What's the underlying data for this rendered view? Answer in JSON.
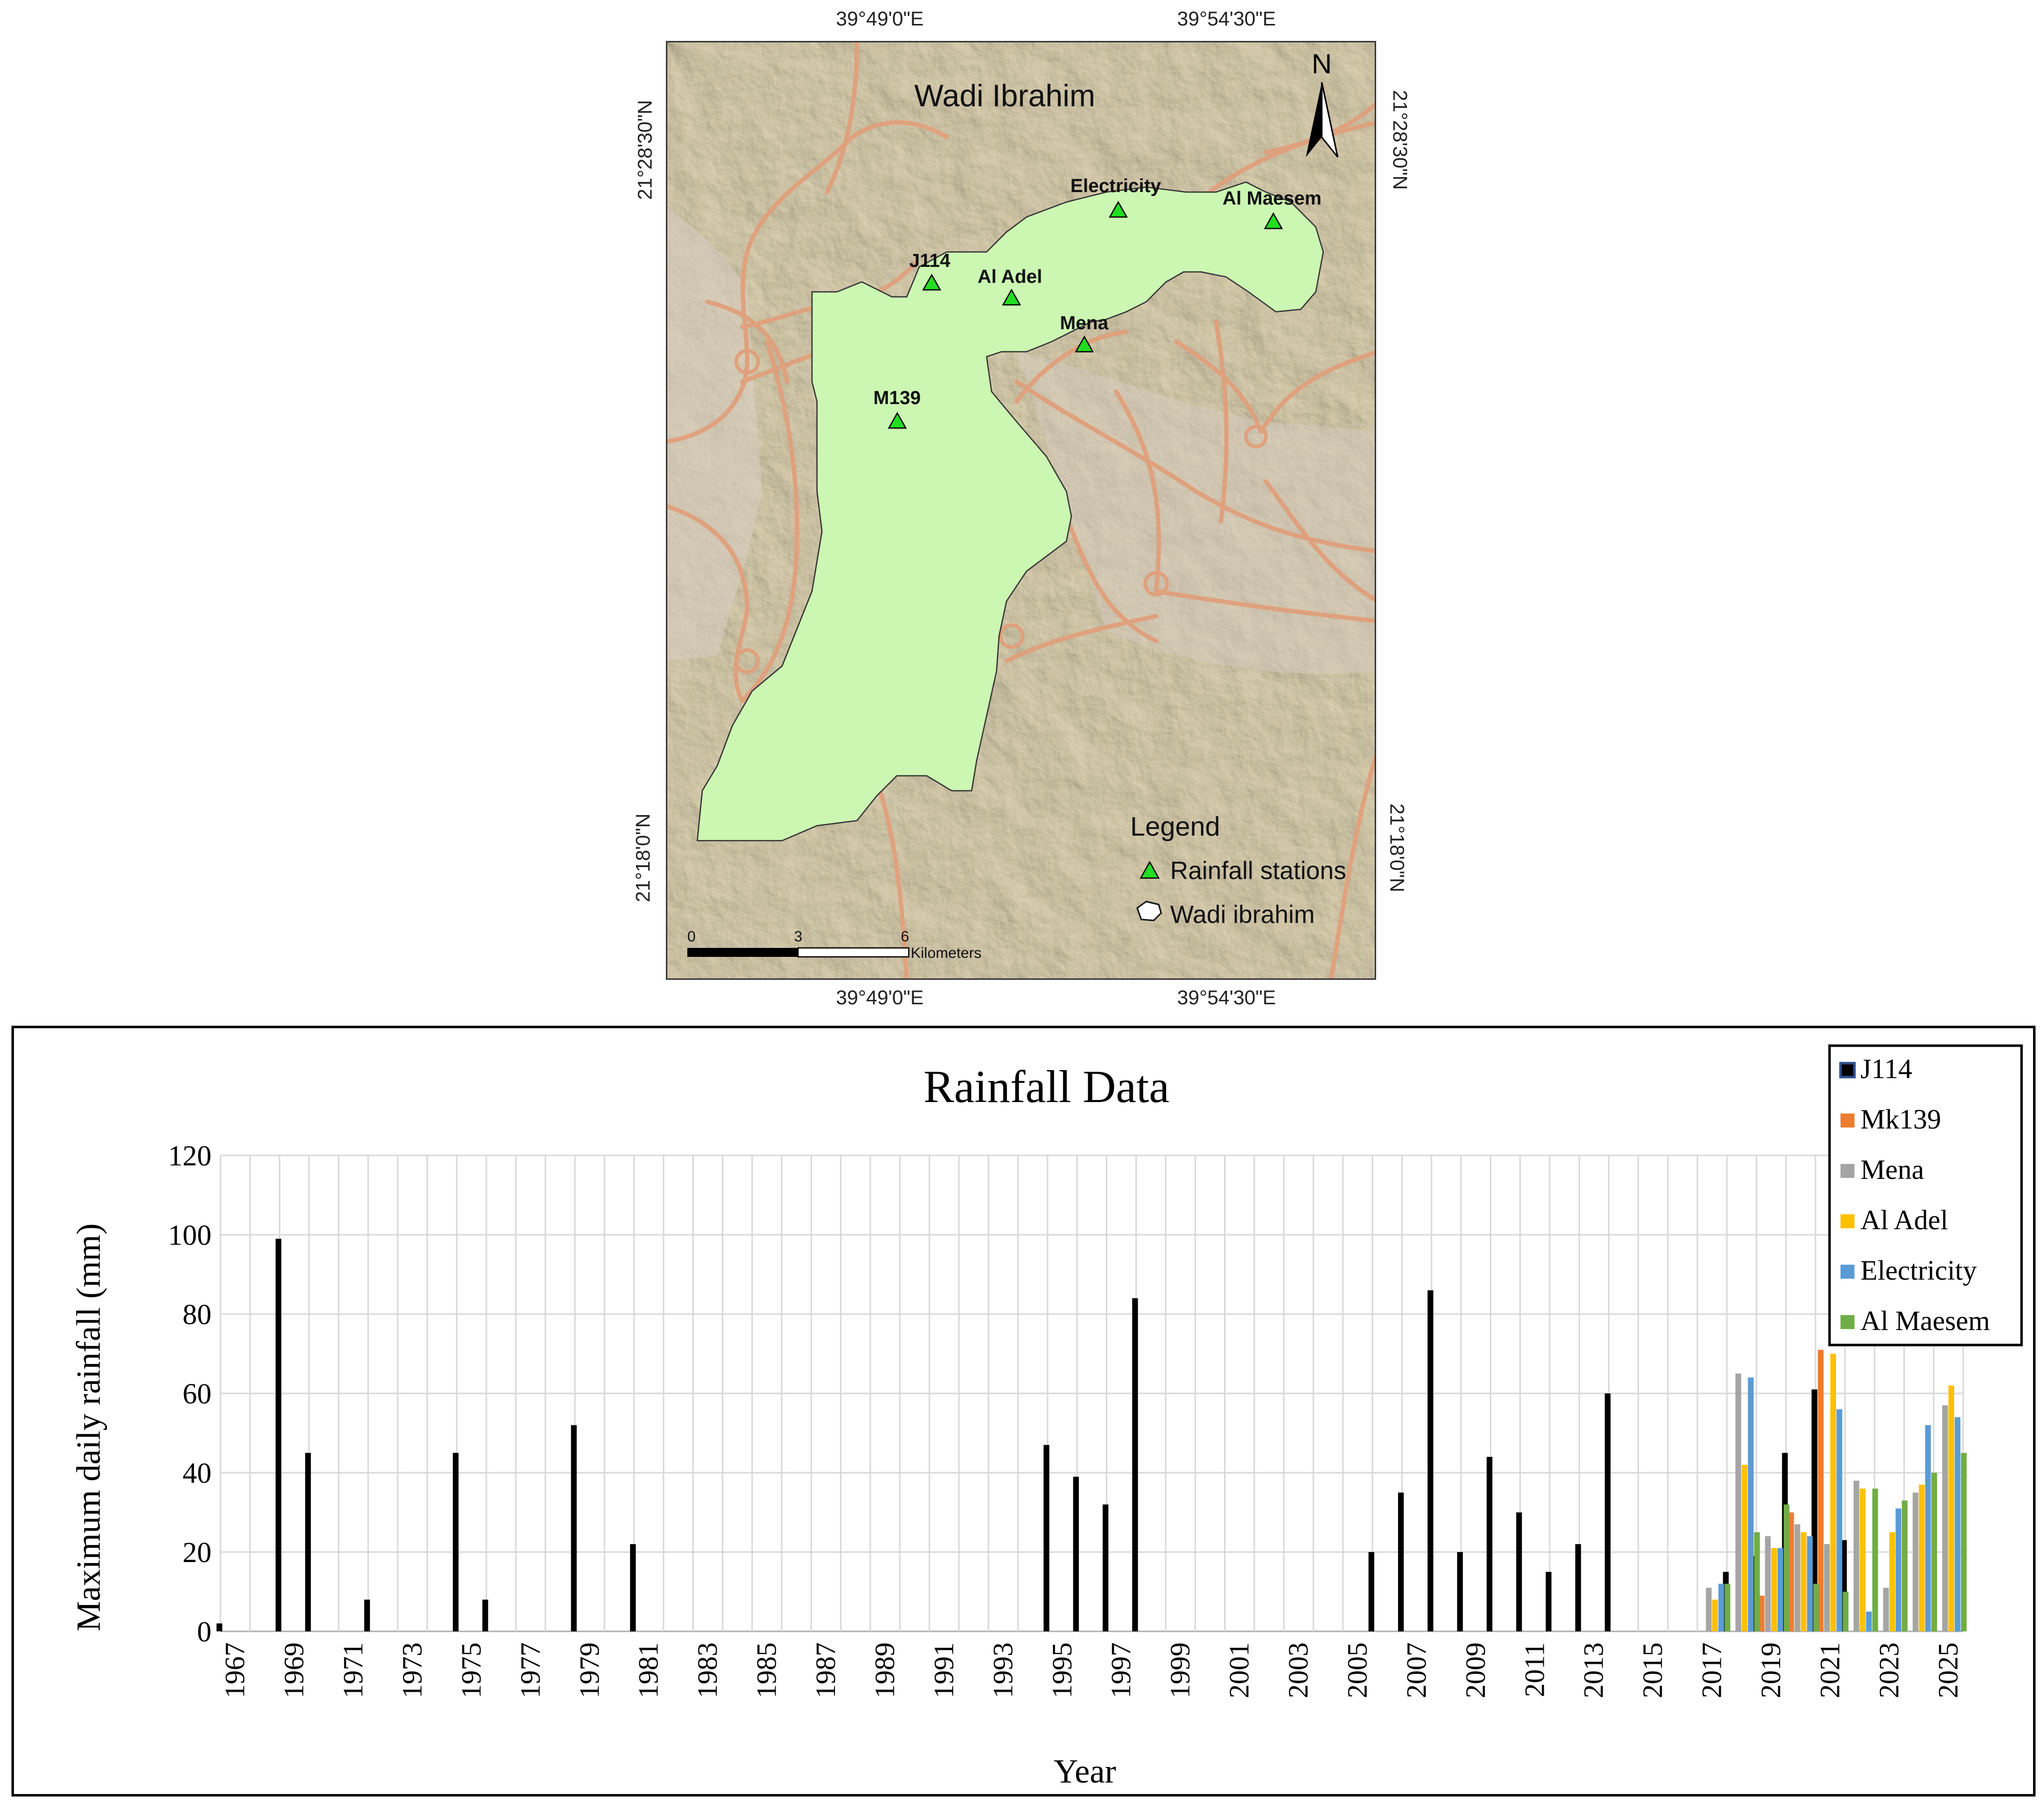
{
  "map": {
    "title": "Wadi Ibrahim",
    "north_label": "N",
    "top_lon_labels": [
      "39°49'0\"E",
      "39°54'30\"E"
    ],
    "bottom_lon_labels": [
      "39°49'0\"E",
      "39°54'30\"E"
    ],
    "left_lat_labels": [
      "21°28'30\"N",
      "21°18'0\"N"
    ],
    "right_lat_labels": [
      "21°28'30\"N",
      "21°18'0\"N"
    ],
    "stations": [
      {
        "name": "J114"
      },
      {
        "name": "Al Adel"
      },
      {
        "name": "Electricity"
      },
      {
        "name": "Al Maesem"
      },
      {
        "name": "Mena"
      },
      {
        "name": "M139"
      }
    ],
    "legend": {
      "title": "Legend",
      "items": [
        {
          "label": "Rainfall stations",
          "icon": "green-triangle-icon"
        },
        {
          "label": "Wadi ibrahim",
          "icon": "polygon-outline-icon"
        }
      ]
    },
    "scale_bar": {
      "ticks": [
        "0",
        "3",
        "6"
      ],
      "unit": "Kilometers"
    },
    "colors": {
      "basin": "#ccf7b3",
      "background": "#d9ccaa",
      "roads": "#e3a07a",
      "station": "#22dd22"
    }
  },
  "chart_data": {
    "type": "bar",
    "title": "Rainfall Data",
    "xlabel": "Year",
    "ylabel": "Maximum daily rainfall (mm)",
    "ylim": [
      0,
      120
    ],
    "yticks": [
      0,
      20,
      40,
      60,
      80,
      100,
      120
    ],
    "grid": true,
    "legend_position": "top-right",
    "categories": [
      1967,
      1968,
      1969,
      1970,
      1971,
      1972,
      1973,
      1974,
      1975,
      1976,
      1977,
      1978,
      1979,
      1980,
      1981,
      1982,
      1983,
      1984,
      1985,
      1986,
      1987,
      1988,
      1989,
      1990,
      1991,
      1992,
      1993,
      1994,
      1995,
      1996,
      1997,
      1998,
      1999,
      2000,
      2001,
      2002,
      2003,
      2004,
      2005,
      2006,
      2007,
      2008,
      2009,
      2010,
      2011,
      2012,
      2013,
      2014,
      2015,
      2016,
      2017,
      2018,
      2019,
      2020,
      2021,
      2022,
      2023,
      2024,
      2025
    ],
    "tick_labels": [
      "1967",
      "1969",
      "1971",
      "1973",
      "1975",
      "1977",
      "1979",
      "1981",
      "1983",
      "1985",
      "1987",
      "1989",
      "1991",
      "1993",
      "1995",
      "1997",
      "1999",
      "2001",
      "2003",
      "2005",
      "2007",
      "2009",
      "2011",
      "2013",
      "2015",
      "2017",
      "2019",
      "2021",
      "2023",
      "2025"
    ],
    "series": [
      {
        "name": "J114",
        "color": "#000000",
        "values": [
          2,
          null,
          99,
          45,
          null,
          8,
          null,
          null,
          45,
          8,
          null,
          null,
          52,
          null,
          22,
          null,
          null,
          null,
          null,
          null,
          null,
          null,
          null,
          null,
          null,
          null,
          null,
          null,
          47,
          39,
          32,
          84,
          null,
          null,
          null,
          null,
          null,
          null,
          null,
          20,
          35,
          86,
          20,
          44,
          30,
          15,
          22,
          60,
          null,
          null,
          null,
          15,
          19,
          45,
          61,
          23,
          null,
          null,
          null
        ]
      },
      {
        "name": "Mk139",
        "color": "#ed7d31",
        "values": [
          null,
          null,
          null,
          null,
          null,
          null,
          null,
          null,
          null,
          null,
          null,
          null,
          null,
          null,
          null,
          null,
          null,
          null,
          null,
          null,
          null,
          null,
          null,
          null,
          null,
          null,
          null,
          null,
          null,
          null,
          null,
          null,
          null,
          null,
          null,
          null,
          null,
          null,
          null,
          null,
          null,
          null,
          null,
          null,
          null,
          null,
          null,
          null,
          null,
          null,
          null,
          null,
          9,
          30,
          71,
          null,
          null,
          null,
          null
        ]
      },
      {
        "name": "Mena",
        "color": "#a5a5a5",
        "values": [
          null,
          null,
          null,
          null,
          null,
          null,
          null,
          null,
          null,
          null,
          null,
          null,
          null,
          null,
          null,
          null,
          null,
          null,
          null,
          null,
          null,
          null,
          null,
          null,
          null,
          null,
          null,
          null,
          null,
          null,
          null,
          null,
          null,
          null,
          null,
          null,
          null,
          null,
          null,
          null,
          null,
          null,
          null,
          null,
          null,
          null,
          null,
          null,
          null,
          null,
          11,
          65,
          24,
          27,
          22,
          38,
          11,
          35,
          57
        ]
      },
      {
        "name": "Al Adel",
        "color": "#ffc000",
        "values": [
          null,
          null,
          null,
          null,
          null,
          null,
          null,
          null,
          null,
          null,
          null,
          null,
          null,
          null,
          null,
          null,
          null,
          null,
          null,
          null,
          null,
          null,
          null,
          null,
          null,
          null,
          null,
          null,
          null,
          null,
          null,
          null,
          null,
          null,
          null,
          null,
          null,
          null,
          null,
          null,
          null,
          null,
          null,
          null,
          null,
          null,
          null,
          null,
          null,
          null,
          8,
          42,
          21,
          25,
          70,
          36,
          25,
          37,
          62
        ]
      },
      {
        "name": "Electricity",
        "color": "#5b9bd5",
        "values": [
          null,
          null,
          null,
          null,
          null,
          null,
          null,
          null,
          null,
          null,
          null,
          null,
          null,
          null,
          null,
          null,
          null,
          null,
          null,
          null,
          null,
          null,
          null,
          null,
          null,
          null,
          null,
          null,
          null,
          null,
          null,
          null,
          null,
          null,
          null,
          null,
          null,
          null,
          null,
          null,
          null,
          null,
          null,
          null,
          null,
          null,
          null,
          null,
          null,
          null,
          12,
          64,
          21,
          24,
          56,
          5,
          31,
          52,
          54
        ]
      },
      {
        "name": "Al Maesem",
        "color": "#70ad47",
        "values": [
          null,
          null,
          null,
          null,
          null,
          null,
          null,
          null,
          null,
          null,
          null,
          null,
          null,
          null,
          null,
          null,
          null,
          null,
          null,
          null,
          null,
          null,
          null,
          null,
          null,
          null,
          null,
          null,
          null,
          null,
          null,
          null,
          null,
          null,
          null,
          null,
          null,
          null,
          null,
          null,
          null,
          null,
          null,
          null,
          null,
          null,
          null,
          null,
          null,
          null,
          12,
          25,
          32,
          12,
          10,
          36,
          33,
          40,
          45
        ]
      }
    ]
  }
}
